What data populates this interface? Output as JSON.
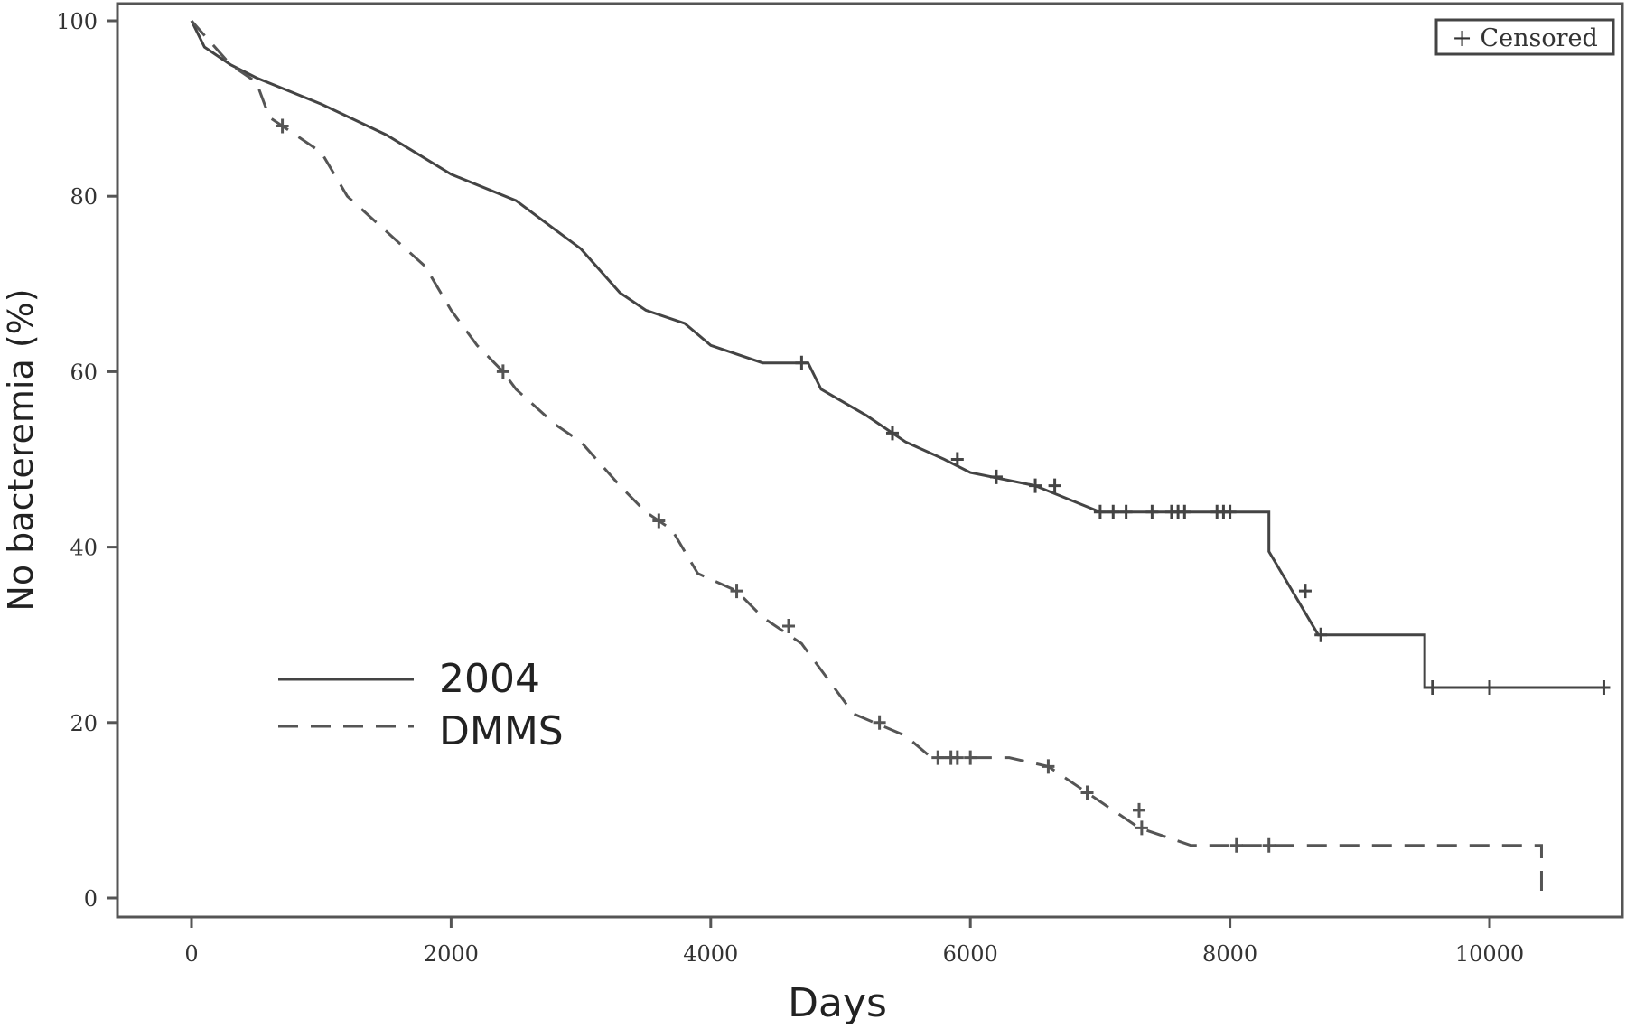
{
  "chart_data": {
    "type": "line",
    "title": "",
    "xlabel": "Days",
    "ylabel": "No bacteremia (%)",
    "xlim": [
      -550,
      11000
    ],
    "ylim": [
      -2,
      102
    ],
    "xticks": [
      0,
      2000,
      4000,
      6000,
      8000,
      10000
    ],
    "yticks": [
      0,
      20,
      40,
      60,
      80,
      100
    ],
    "grid": false,
    "legend": {
      "placement": "lower-left",
      "censored_label": "+ Censored",
      "censored_placement": "top-right"
    },
    "step": true,
    "series": [
      {
        "name": "2004",
        "style": "solid",
        "color": "#444444",
        "x": [
          0,
          100,
          300,
          500,
          1000,
          1500,
          2000,
          2500,
          3000,
          3300,
          3500,
          3800,
          4000,
          4400,
          4750,
          4850,
          5200,
          5500,
          5800,
          6000,
          6500,
          7000,
          8300,
          8480,
          8680,
          9500,
          10900
        ],
        "y": [
          100,
          97,
          95,
          93.5,
          90.5,
          87,
          82.5,
          79.5,
          74,
          69,
          67,
          65.5,
          63,
          61,
          61,
          58,
          55,
          52,
          50,
          48.5,
          47,
          44,
          39.5,
          35,
          30,
          24,
          24
        ],
        "censored_x": [
          4700,
          5400,
          5900,
          6200,
          6500,
          6650,
          7000,
          7100,
          7200,
          7400,
          7550,
          7600,
          7650,
          7900,
          7950,
          8000,
          8580,
          8700,
          9560,
          10000,
          10880
        ],
        "censored_y": [
          61,
          53,
          50,
          48,
          47,
          47,
          44,
          44,
          44,
          44,
          44,
          44,
          44,
          44,
          44,
          44,
          35,
          30,
          24,
          24,
          24
        ]
      },
      {
        "name": "DMMS",
        "style": "dashed",
        "color": "#555555",
        "x": [
          0,
          300,
          500,
          600,
          1000,
          1200,
          1500,
          1800,
          2000,
          2200,
          2400,
          2500,
          2800,
          3000,
          3300,
          3500,
          3700,
          3900,
          4200,
          4400,
          4700,
          4900,
          5100,
          5500,
          5700,
          6300,
          6600,
          6900,
          7100,
          7300,
          7700,
          10400
        ],
        "y": [
          100,
          95,
          93,
          89,
          85,
          80,
          76,
          72,
          67,
          63,
          60,
          58,
          54,
          52,
          47,
          44,
          42,
          37,
          35,
          32,
          29,
          25,
          21,
          18.5,
          16,
          16,
          15,
          12,
          10,
          8,
          6,
          0
        ],
        "censored_x": [
          700,
          2400,
          3600,
          4200,
          4600,
          5300,
          5750,
          5850,
          5900,
          6000,
          6600,
          6900,
          7300,
          7320,
          8050,
          8300
        ],
        "censored_y": [
          88,
          60,
          43,
          35,
          31,
          20,
          16,
          16,
          16,
          16,
          15,
          12,
          10,
          8,
          6,
          6
        ]
      }
    ]
  }
}
